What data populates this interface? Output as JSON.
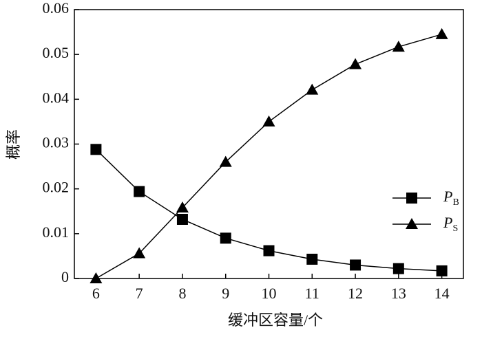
{
  "chart_data": {
    "type": "line",
    "x_label": "缓冲区容量/个",
    "y_label": "概率",
    "x": [
      6,
      7,
      8,
      9,
      10,
      11,
      12,
      13,
      14
    ],
    "series": [
      {
        "name": "PB",
        "color": "#000000",
        "marker": "square",
        "values": [
          0.0288,
          0.0194,
          0.0132,
          0.009,
          0.0062,
          0.0043,
          0.003,
          0.0022,
          0.0017
        ]
      },
      {
        "name": "PS",
        "color": "#000000",
        "marker": "triangle",
        "values": [
          0.0,
          0.0056,
          0.0158,
          0.026,
          0.035,
          0.0421,
          0.0478,
          0.0517,
          0.0545
        ]
      }
    ],
    "xlim": [
      5.5,
      14.5
    ],
    "xticks": [
      6,
      7,
      8,
      9,
      10,
      11,
      12,
      13,
      14
    ],
    "ylim": [
      0,
      0.06
    ],
    "yticks": [
      0,
      0.01,
      0.02,
      0.03,
      0.04,
      0.05,
      0.06
    ],
    "legend": "lower right",
    "grid": false
  }
}
